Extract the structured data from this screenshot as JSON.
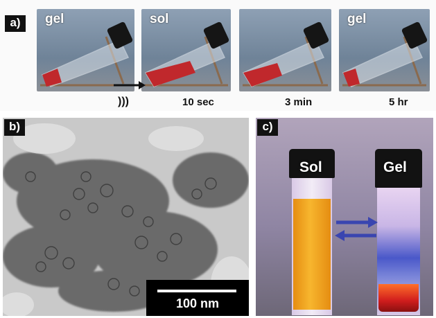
{
  "panels": {
    "a": {
      "label": "a)",
      "photos": [
        {
          "label": "gel",
          "time": ""
        },
        {
          "label": "sol",
          "time": "10 sec"
        },
        {
          "label": "",
          "time": "3 min"
        },
        {
          "label": "gel",
          "time": "5 hr"
        }
      ],
      "sonication_symbol": ")))"
    },
    "b": {
      "label": "b)",
      "scale_bar": "100 nm"
    },
    "c": {
      "label": "c)",
      "left_vial_label": "Sol",
      "right_vial_label": "Gel"
    }
  },
  "colors": {
    "gel_red": "#c0282c",
    "photo_background": "#7f93a8",
    "tem_background": "#c9c9c9",
    "uv_background": "#9c8ca8",
    "sol_fluorescence": "#f2a21a",
    "arrow_blue": "#3a45b0",
    "label_black": "#111111"
  }
}
